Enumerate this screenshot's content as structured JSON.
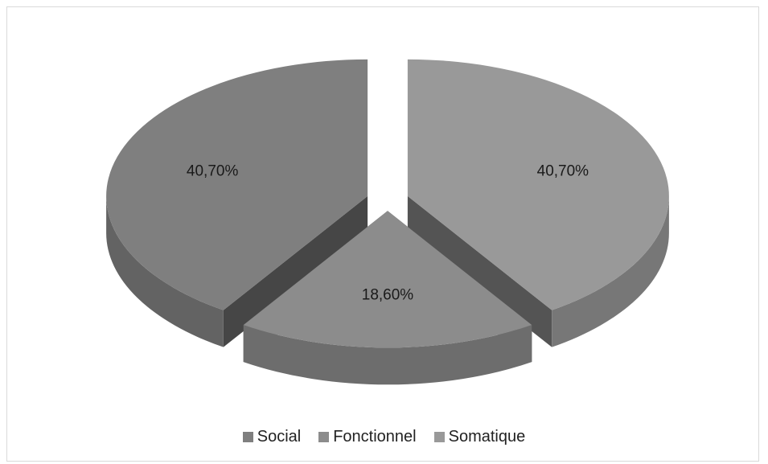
{
  "chart_data": {
    "type": "pie",
    "title": "",
    "three_d": true,
    "exploded": true,
    "legend_position": "bottom",
    "categories": [
      "Social",
      "Fonctionnel",
      "Somatique"
    ],
    "values": [
      40.7,
      18.6,
      40.7
    ],
    "labels": [
      "40,70%",
      "18,60%",
      "40,70%"
    ],
    "colors": [
      "#7f7f7f",
      "#8c8c8c",
      "#999999"
    ]
  }
}
